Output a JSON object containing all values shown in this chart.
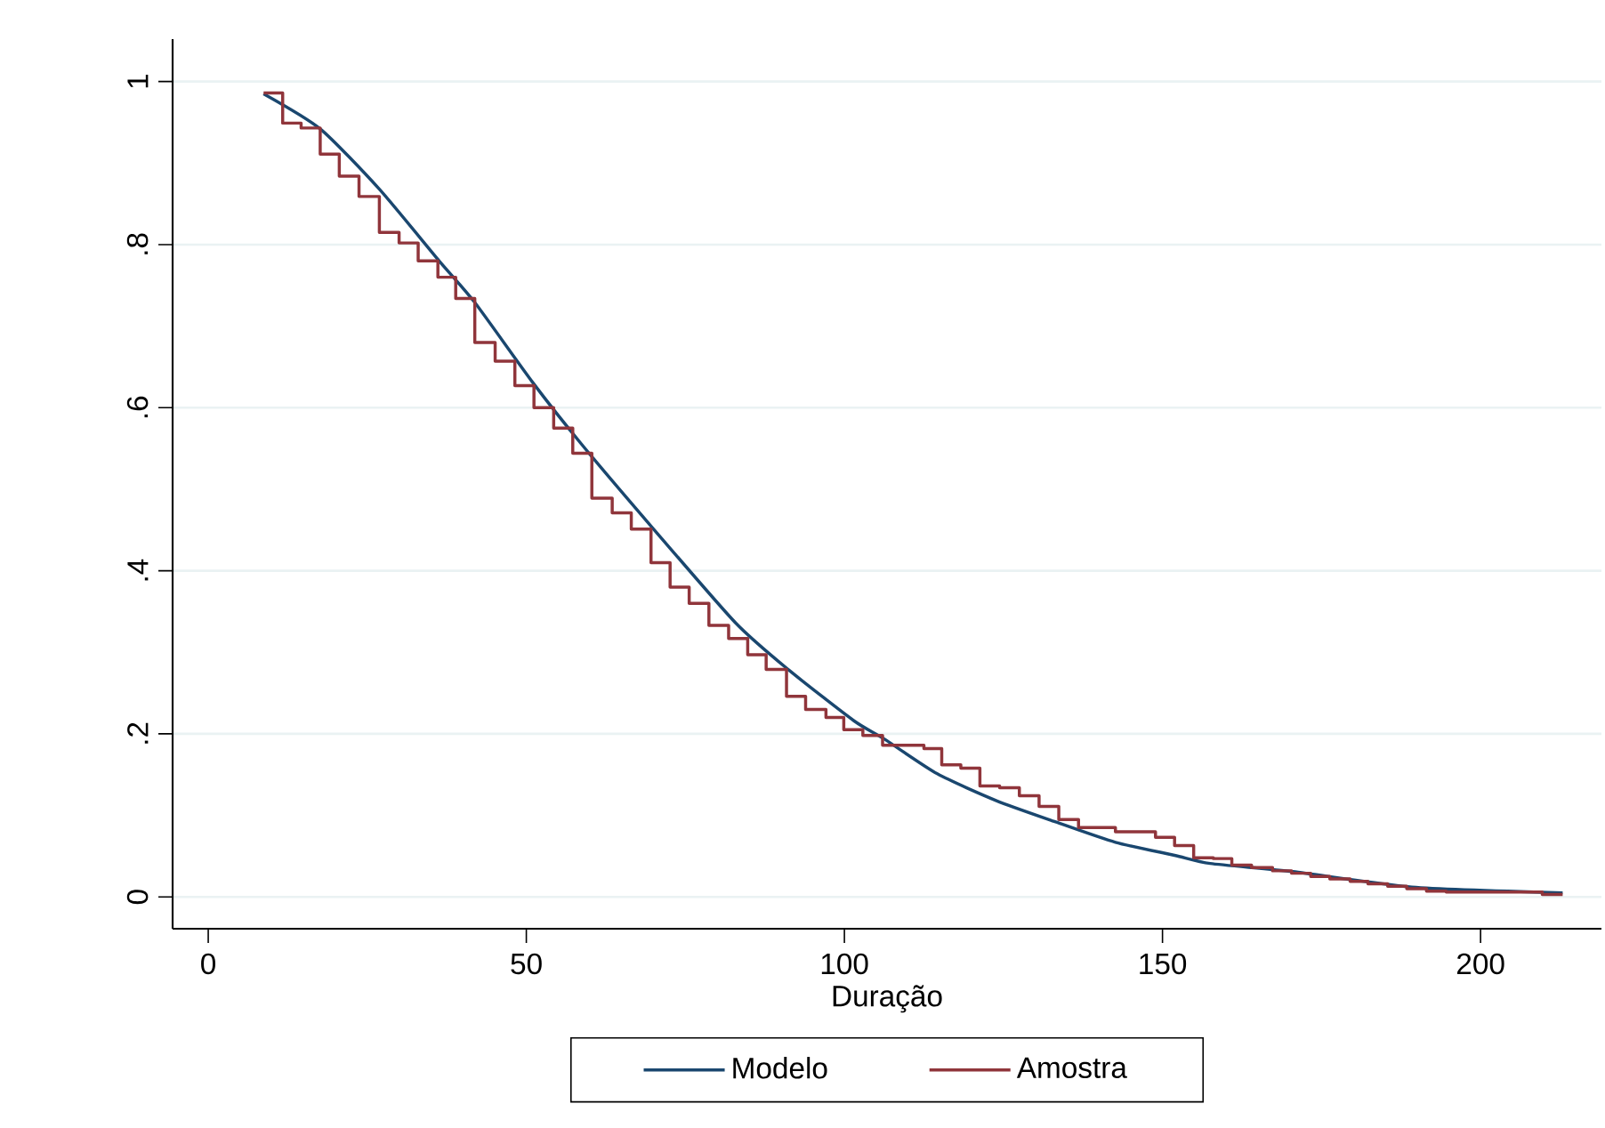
{
  "chart_data": {
    "type": "line",
    "xlabel": "Duração",
    "xlim": [
      -5.6,
      219
    ],
    "xticks": [
      0,
      50,
      100,
      150,
      200
    ],
    "ylim": [
      -0.039,
      1.052
    ],
    "yticks": [
      0,
      {
        "value": 0.2,
        "label": ".2"
      },
      {
        "value": 0.4,
        "label": ".4"
      },
      {
        "value": 0.6,
        "label": ".6"
      },
      {
        "value": 0.8,
        "label": ".8"
      },
      1
    ],
    "grid": "y",
    "legend": "bottom",
    "marker": "none",
    "series": [
      {
        "name": "Modelo",
        "color": "#1a476f",
        "x": [
          8.7,
          17.6,
          26.9,
          36.3,
          41.9,
          51.0,
          58.7,
          69.8,
          82.9,
          91.3,
          101.5,
          106.2,
          114.6,
          123.9,
          133.2,
          142.6,
          151.9,
          157.5,
          170.5,
          189.2,
          212.9
        ],
        "values": [
          0.985,
          0.942,
          0.868,
          0.78,
          0.729,
          0.631,
          0.555,
          0.453,
          0.336,
          0.278,
          0.216,
          0.194,
          0.151,
          0.118,
          0.092,
          0.067,
          0.051,
          0.041,
          0.031,
          0.012,
          0.005
        ]
      },
      {
        "name": "Amostra",
        "type": "step",
        "color": "#90353b",
        "x": [
          8.7,
          11.7,
          14.6,
          17.6,
          20.6,
          23.7,
          26.9,
          30.0,
          33.0,
          36.1,
          38.9,
          41.9,
          45.1,
          48.2,
          51.2,
          54.3,
          57.3,
          60.3,
          63.5,
          66.5,
          69.6,
          72.6,
          75.6,
          78.7,
          81.8,
          84.8,
          87.7,
          90.9,
          93.9,
          97.1,
          99.9,
          102.9,
          106.0,
          112.5,
          115.3,
          118.3,
          121.3,
          124.4,
          127.5,
          130.6,
          133.7,
          136.8,
          142.6,
          148.9,
          151.9,
          154.9,
          158.0,
          160.9,
          164.0,
          167.3,
          170.3,
          173.3,
          176.3,
          179.5,
          182.3,
          185.4,
          188.4,
          191.5,
          194.6,
          209.7,
          212.9
        ],
        "values": [
          0.986,
          0.949,
          0.943,
          0.911,
          0.884,
          0.859,
          0.815,
          0.802,
          0.78,
          0.76,
          0.734,
          0.68,
          0.657,
          0.627,
          0.6,
          0.575,
          0.544,
          0.489,
          0.471,
          0.451,
          0.41,
          0.38,
          0.36,
          0.333,
          0.317,
          0.297,
          0.279,
          0.246,
          0.23,
          0.22,
          0.205,
          0.198,
          0.186,
          0.182,
          0.162,
          0.158,
          0.136,
          0.134,
          0.124,
          0.111,
          0.095,
          0.085,
          0.08,
          0.073,
          0.063,
          0.048,
          0.047,
          0.039,
          0.036,
          0.032,
          0.029,
          0.025,
          0.022,
          0.019,
          0.016,
          0.013,
          0.01,
          0.007,
          0.006,
          0.003,
          0.003
        ]
      }
    ]
  }
}
